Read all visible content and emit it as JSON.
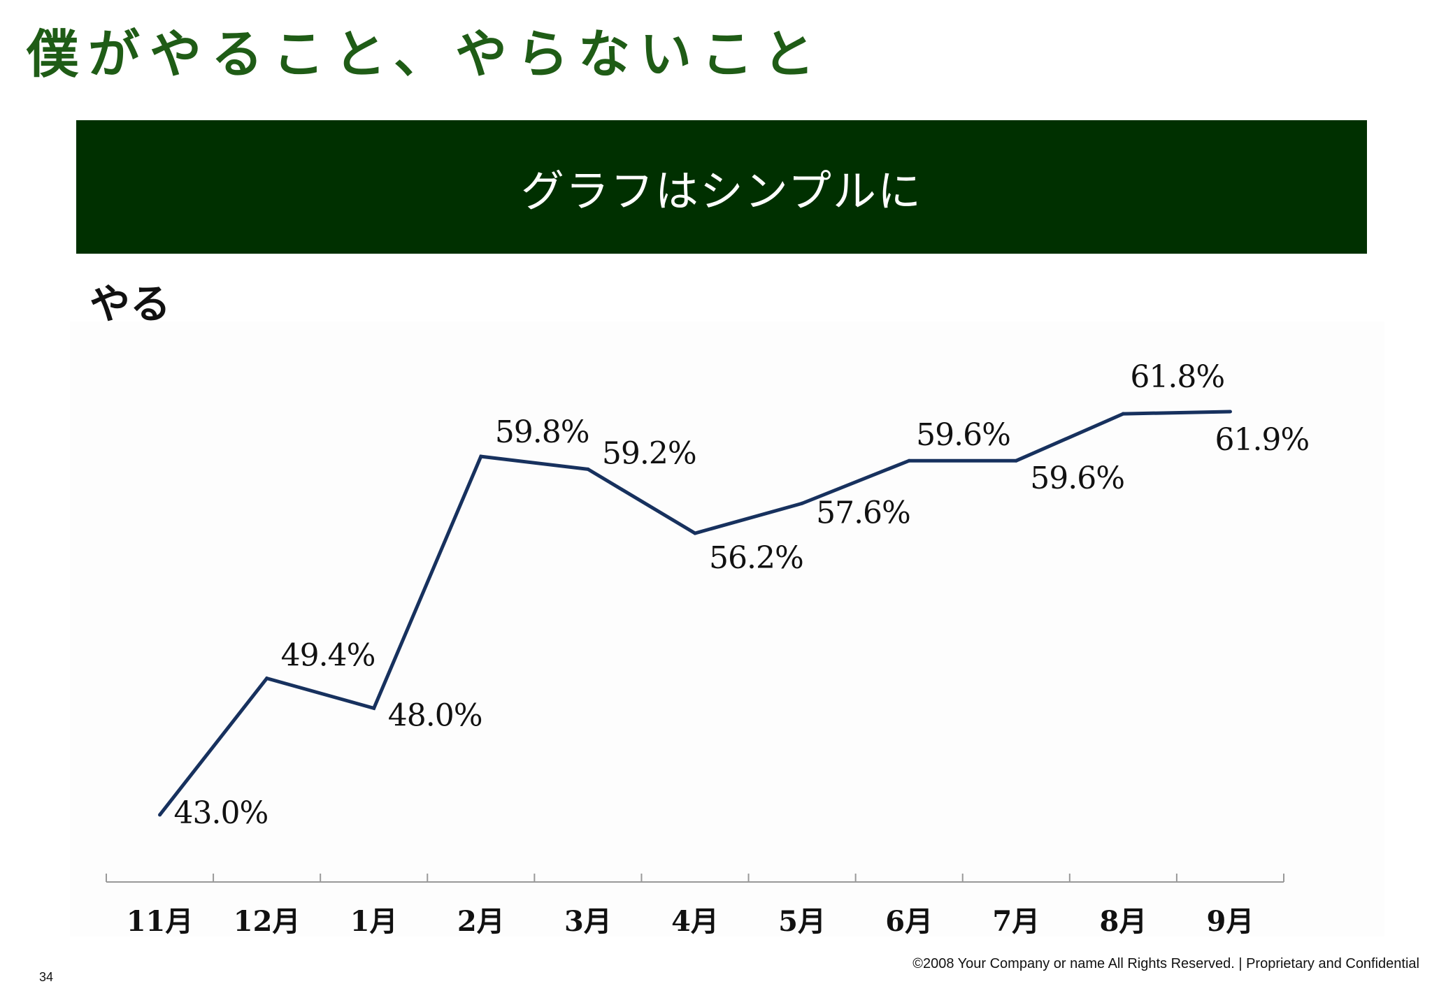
{
  "slide": {
    "title": "僕がやること、やらないこと",
    "banner": "グラフはシンプルに",
    "section_label": "やる",
    "footer": "©2008 Your Company or name  All Rights Reserved. | Proprietary and Confidential",
    "page_number": "34"
  },
  "colors": {
    "title": "#1f5c16",
    "banner_bg": "#003000",
    "banner_text": "#ffffff",
    "line": "#17315e",
    "axis": "#999999",
    "text": "#111111"
  },
  "chart_data": {
    "type": "line",
    "title": "",
    "xlabel": "",
    "ylabel": "",
    "categories": [
      "11月",
      "12月",
      "1月",
      "2月",
      "3月",
      "4月",
      "5月",
      "6月",
      "7月",
      "8月",
      "9月"
    ],
    "values": [
      43.0,
      49.4,
      48.0,
      59.8,
      59.2,
      56.2,
      57.6,
      59.6,
      59.6,
      61.8,
      61.9
    ],
    "data_labels": [
      "43.0%",
      "49.4%",
      "48.0%",
      "59.8%",
      "59.2%",
      "56.2%",
      "57.6%",
      "59.6%",
      "59.6%",
      "61.8%",
      "61.9%"
    ],
    "y_axis_visible": false,
    "grid": false,
    "legend": "none"
  }
}
